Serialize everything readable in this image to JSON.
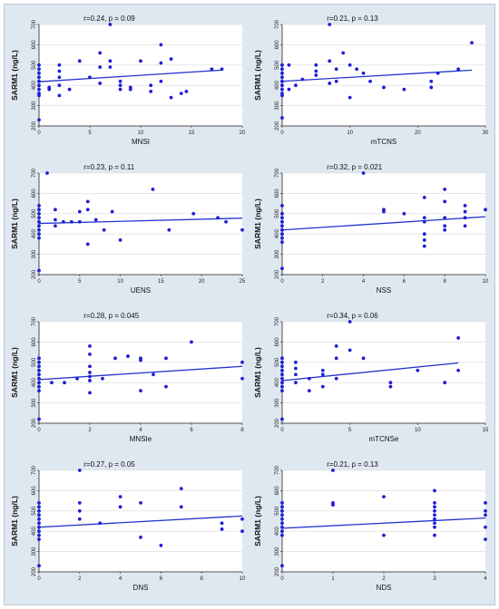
{
  "figure": {
    "background": "#dfe8f1",
    "point_color": "#1f1fd6",
    "line_color": "#2233cc"
  },
  "chart_data": [
    {
      "type": "scatter",
      "title": "",
      "annotation": "r=0.24, p = 0.09",
      "xlabel": "MNSI",
      "ylabel": "SARM1 (ng/L)",
      "xlim": [
        0,
        20
      ],
      "ylim": [
        200,
        700
      ],
      "xticks": [
        0,
        5,
        10,
        15,
        20
      ],
      "yticks": [
        200,
        300,
        400,
        500,
        600,
        700
      ],
      "grid": true,
      "fit": {
        "x": [
          0,
          18
        ],
        "y": [
          418,
          475
        ]
      },
      "points": {
        "x": [
          0,
          0,
          0,
          0,
          0,
          0,
          0,
          0,
          0,
          0,
          1,
          1,
          2,
          2,
          2,
          2,
          2,
          3,
          4,
          5,
          6,
          6,
          6,
          7,
          7,
          7,
          8,
          8,
          8,
          9,
          9,
          10,
          11,
          11,
          12,
          12,
          12,
          13,
          13,
          14,
          14.5,
          17,
          18
        ],
        "y": [
          500,
          480,
          460,
          440,
          420,
          400,
          380,
          360,
          350,
          230,
          390,
          380,
          500,
          470,
          440,
          400,
          350,
          380,
          520,
          440,
          560,
          490,
          410,
          700,
          520,
          490,
          420,
          400,
          380,
          390,
          380,
          520,
          400,
          370,
          510,
          420,
          600,
          340,
          530,
          360,
          370,
          480,
          480
        ]
      }
    },
    {
      "type": "scatter",
      "title": "",
      "annotation": "r=0.21, p = 0.13",
      "xlabel": "mTCNS",
      "ylabel": "SARM1 (ng/L)",
      "xlim": [
        0,
        30
      ],
      "ylim": [
        200,
        700
      ],
      "xticks": [
        0,
        10,
        20,
        30
      ],
      "yticks": [
        200,
        300,
        400,
        500,
        600,
        700
      ],
      "grid": true,
      "fit": {
        "x": [
          0,
          28
        ],
        "y": [
          420,
          475
        ]
      },
      "points": {
        "x": [
          0,
          0,
          0,
          0,
          0,
          0,
          0,
          0,
          0,
          0,
          1,
          1,
          2,
          3,
          5,
          5,
          5,
          7,
          7,
          7,
          8,
          8,
          9,
          10,
          10,
          11,
          12,
          13,
          15,
          18,
          22,
          22,
          23,
          26,
          28
        ],
        "y": [
          500,
          480,
          460,
          440,
          420,
          400,
          380,
          360,
          350,
          240,
          500,
          380,
          400,
          430,
          500,
          470,
          450,
          700,
          520,
          410,
          480,
          420,
          560,
          500,
          340,
          480,
          460,
          420,
          390,
          380,
          420,
          390,
          460,
          480,
          610
        ]
      }
    },
    {
      "type": "scatter",
      "title": "",
      "annotation": "r=0.23, p = 0.11",
      "xlabel": "UENS",
      "ylabel": "SARM1 (ng/L)",
      "xlim": [
        0,
        25
      ],
      "ylim": [
        200,
        700
      ],
      "xticks": [
        0,
        5,
        10,
        15,
        20,
        25
      ],
      "yticks": [
        200,
        300,
        400,
        500,
        600,
        700
      ],
      "grid": true,
      "fit": {
        "x": [
          0,
          25
        ],
        "y": [
          452,
          478
        ]
      },
      "points": {
        "x": [
          0,
          0,
          0,
          0,
          0,
          0,
          0,
          0,
          0,
          0,
          1,
          2,
          2,
          2,
          3,
          4,
          5,
          5,
          6,
          6,
          6,
          7,
          8,
          9,
          10,
          14,
          16,
          19,
          22,
          23,
          25
        ],
        "y": [
          540,
          520,
          500,
          480,
          460,
          440,
          420,
          400,
          380,
          220,
          700,
          520,
          470,
          440,
          460,
          460,
          510,
          460,
          560,
          520,
          350,
          470,
          420,
          510,
          370,
          620,
          420,
          500,
          480,
          460,
          420
        ]
      }
    },
    {
      "type": "scatter",
      "title": "",
      "annotation": "r=0.32, p = 0.021",
      "xlabel": "NSS",
      "ylabel": "SARM1 (ng/L)",
      "xlim": [
        0,
        10
      ],
      "ylim": [
        200,
        700
      ],
      "xticks": [
        0,
        2,
        4,
        6,
        8,
        10
      ],
      "yticks": [
        200,
        300,
        400,
        500,
        600,
        700
      ],
      "grid": true,
      "fit": {
        "x": [
          0,
          10
        ],
        "y": [
          420,
          485
        ]
      },
      "points": {
        "x": [
          0,
          0,
          0,
          0,
          0,
          0,
          0,
          0,
          0,
          0,
          4,
          5,
          5,
          6,
          7,
          7,
          7,
          7,
          7,
          7,
          8,
          8,
          8,
          8,
          8,
          9,
          9,
          9,
          9,
          10
        ],
        "y": [
          540,
          500,
          480,
          460,
          440,
          420,
          400,
          380,
          360,
          230,
          700,
          520,
          510,
          500,
          580,
          480,
          460,
          400,
          370,
          340,
          620,
          560,
          480,
          440,
          420,
          540,
          510,
          480,
          440,
          520
        ]
      }
    },
    {
      "type": "scatter",
      "title": "",
      "annotation": "r=0.28, p = 0.045",
      "xlabel": "MNSIe",
      "ylabel": "SARM1 (ng/L)",
      "xlim": [
        0,
        8
      ],
      "ylim": [
        200,
        700
      ],
      "xticks": [
        0,
        2,
        4,
        6,
        8
      ],
      "yticks": [
        200,
        300,
        400,
        500,
        600,
        700
      ],
      "grid": true,
      "fit": {
        "x": [
          0,
          8
        ],
        "y": [
          415,
          480
        ]
      },
      "points": {
        "x": [
          0,
          0,
          0,
          0,
          0,
          0,
          0,
          0,
          0,
          0,
          0.5,
          1,
          1.5,
          2,
          2,
          2,
          2,
          2,
          2,
          2,
          2.5,
          3,
          3.5,
          4,
          4,
          4,
          4.5,
          5,
          5,
          6,
          8,
          8
        ],
        "y": [
          520,
          500,
          480,
          460,
          440,
          420,
          400,
          380,
          360,
          220,
          400,
          400,
          420,
          580,
          540,
          480,
          450,
          430,
          410,
          350,
          420,
          520,
          530,
          520,
          510,
          360,
          440,
          520,
          380,
          600,
          500,
          420
        ]
      }
    },
    {
      "type": "scatter",
      "title": "",
      "annotation": "r=0.34, p = 0.06",
      "xlabel": "mTCNSe",
      "ylabel": "SARM1 (ng/L)",
      "xlim": [
        0,
        15
      ],
      "ylim": [
        200,
        700
      ],
      "xticks": [
        0,
        5,
        10,
        15
      ],
      "yticks": [
        200,
        300,
        400,
        500,
        600,
        700
      ],
      "grid": true,
      "fit": {
        "x": [
          0,
          13
        ],
        "y": [
          410,
          497
        ]
      },
      "points": {
        "x": [
          0,
          0,
          0,
          0,
          0,
          0,
          0,
          0,
          0,
          0,
          1,
          1,
          1,
          1,
          2,
          2,
          3,
          3,
          3,
          4,
          4,
          4,
          5,
          5,
          6,
          8,
          8,
          10,
          12,
          13,
          13
        ],
        "y": [
          520,
          500,
          480,
          460,
          440,
          420,
          400,
          380,
          360,
          220,
          500,
          470,
          440,
          400,
          420,
          360,
          460,
          440,
          380,
          580,
          520,
          420,
          700,
          560,
          520,
          400,
          380,
          460,
          400,
          620,
          460
        ]
      }
    },
    {
      "type": "scatter",
      "title": "",
      "annotation": "r=0.27, p = 0.05",
      "xlabel": "DNS",
      "ylabel": "SARM1 (ng/L)",
      "xlim": [
        0,
        10
      ],
      "ylim": [
        200,
        700
      ],
      "xticks": [
        0,
        2,
        4,
        6,
        8,
        10
      ],
      "yticks": [
        200,
        300,
        400,
        500,
        600,
        700
      ],
      "grid": true,
      "fit": {
        "x": [
          0,
          10
        ],
        "y": [
          420,
          475
        ]
      },
      "points": {
        "x": [
          0,
          0,
          0,
          0,
          0,
          0,
          0,
          0,
          0,
          0,
          0,
          2,
          2,
          2,
          2,
          3,
          4,
          4,
          5,
          5,
          6,
          7,
          7,
          9,
          9,
          10,
          10
        ],
        "y": [
          540,
          520,
          500,
          480,
          460,
          440,
          420,
          400,
          380,
          360,
          230,
          700,
          540,
          500,
          460,
          440,
          570,
          520,
          540,
          370,
          330,
          610,
          520,
          440,
          410,
          460,
          400
        ]
      }
    },
    {
      "type": "scatter",
      "title": "",
      "annotation": "r=0.21, p = 0.13",
      "xlabel": "NDS",
      "ylabel": "SARM1 (ng/L)",
      "xlim": [
        0,
        4
      ],
      "ylim": [
        200,
        700
      ],
      "xticks": [
        0,
        1,
        2,
        3,
        4
      ],
      "yticks": [
        200,
        300,
        400,
        500,
        600,
        700
      ],
      "grid": true,
      "fit": {
        "x": [
          0,
          4
        ],
        "y": [
          415,
          465
        ]
      },
      "points": {
        "x": [
          0,
          0,
          0,
          0,
          0,
          0,
          0,
          0,
          0,
          0,
          1,
          1,
          1,
          2,
          2,
          3,
          3,
          3,
          3,
          3,
          3,
          3,
          3,
          3,
          4,
          4,
          4,
          4,
          4
        ],
        "y": [
          540,
          520,
          500,
          480,
          460,
          440,
          420,
          400,
          380,
          230,
          700,
          540,
          530,
          570,
          380,
          600,
          540,
          520,
          500,
          480,
          460,
          440,
          420,
          380,
          540,
          500,
          480,
          420,
          360
        ]
      }
    }
  ]
}
